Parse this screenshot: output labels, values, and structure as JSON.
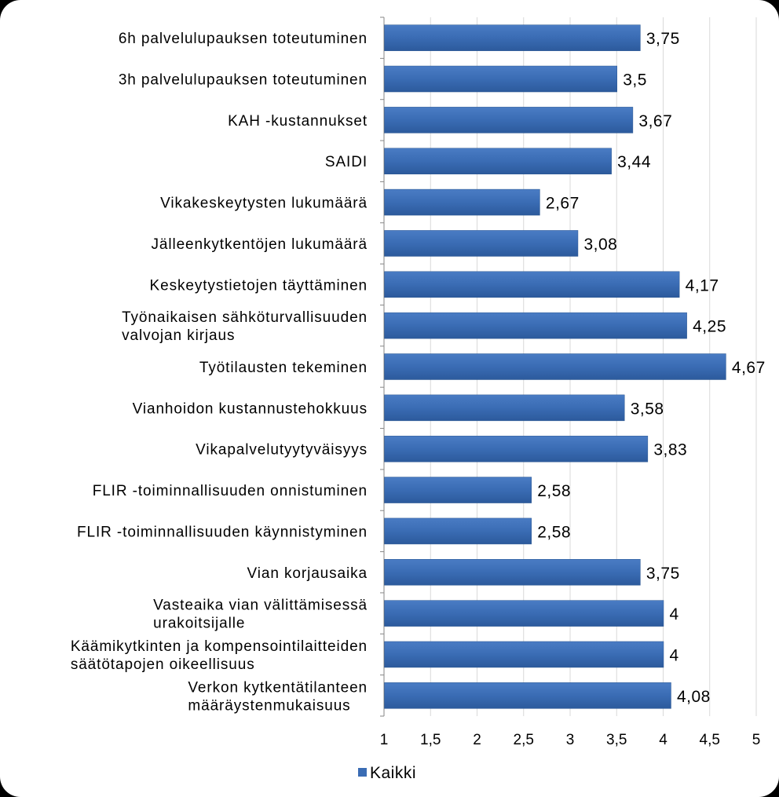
{
  "chart_data": {
    "type": "bar",
    "orientation": "horizontal",
    "title": "",
    "xlabel": "",
    "ylabel": "",
    "xlim": [
      1,
      5
    ],
    "grid": true,
    "categories": [
      [
        "6h palvelulupauksen  toteutuminen"
      ],
      [
        "3h palvelulupauksen  toteutuminen"
      ],
      [
        "KAH  -kustannukset"
      ],
      [
        "SAIDI"
      ],
      [
        "Vikakeskeytysten lukumäärä"
      ],
      [
        "Jälleenkytkentöjen lukumäärä"
      ],
      [
        "Keskeytystietojen täyttäminen"
      ],
      [
        "Työnaikaisen sähköturvallisuuden",
        "valvojan kirjaus"
      ],
      [
        "Työtilausten tekeminen"
      ],
      [
        "Vianhoidon kustannustehokkuus"
      ],
      [
        "Vikapalvelutyytyväisyys"
      ],
      [
        "FLIR -toiminnallisuuden  onnistuminen"
      ],
      [
        "FLIR -toiminnallisuuden  käynnistyminen"
      ],
      [
        "Vian korjausaika"
      ],
      [
        "Vasteaika vian välittämisessä",
        "urakoitsijalle"
      ],
      [
        "Käämikytkinten ja kompensointilaitteiden",
        "säätötapojen oikeellisuus"
      ],
      [
        "Verkon kytkentätilanteen",
        "määräystenmukaisuus"
      ]
    ],
    "series": [
      {
        "name": "Kaikki",
        "color": "#3a6cb4",
        "values": [
          3.75,
          3.5,
          3.67,
          3.44,
          2.67,
          3.08,
          4.17,
          4.25,
          4.67,
          3.58,
          3.83,
          2.58,
          2.58,
          3.75,
          4,
          4,
          4.08
        ],
        "labels": [
          "3,75",
          "3,5",
          "3,67",
          "3,44",
          "2,67",
          "3,08",
          "4,17",
          "4,25",
          "4,67",
          "3,58",
          "3,83",
          "2,58",
          "2,58",
          "3,75",
          "4",
          "4",
          "4,08"
        ]
      }
    ],
    "ticks": [
      {
        "value": 1,
        "label": "1"
      },
      {
        "value": 1.5,
        "label": "1,5"
      },
      {
        "value": 2,
        "label": "2"
      },
      {
        "value": 2.5,
        "label": "2,5"
      },
      {
        "value": 3,
        "label": "3"
      },
      {
        "value": 3.5,
        "label": "3,5"
      },
      {
        "value": 4,
        "label": "4"
      },
      {
        "value": 4.5,
        "label": "4,5"
      },
      {
        "value": 5,
        "label": "5"
      }
    ],
    "legend": {
      "position": "bottom",
      "entries": [
        "Kaikki"
      ]
    }
  }
}
